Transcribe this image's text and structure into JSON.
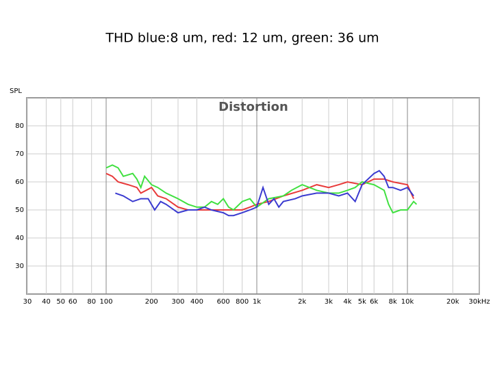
{
  "chart_data": {
    "type": "line",
    "title": "THD       blue:8 um, red: 12 um, green: 36 um",
    "annotation": "Distortion",
    "y_label": "SPL",
    "log_x": true,
    "grid": true,
    "xlim": [
      30,
      30000
    ],
    "ylim": [
      20,
      90
    ],
    "xticks": [
      30,
      40,
      50,
      60,
      80,
      100,
      200,
      300,
      400,
      600,
      800,
      {
        "value": 1000,
        "label": "1k"
      },
      {
        "value": 2000,
        "label": "2k"
      },
      {
        "value": 3000,
        "label": "3k"
      },
      {
        "value": 4000,
        "label": "4k"
      },
      {
        "value": 5000,
        "label": "5k"
      },
      {
        "value": 6000,
        "label": "6k"
      },
      {
        "value": 8000,
        "label": "8k"
      },
      {
        "value": 10000,
        "label": "10k"
      },
      {
        "value": 20000,
        "label": "20k"
      },
      {
        "value": 30000,
        "label": "30kHz"
      }
    ],
    "yticks": [
      30,
      40,
      50,
      60,
      70,
      80
    ],
    "series": [
      {
        "name": "red",
        "color": "#e83a3a",
        "x": [
          100,
          110,
          120,
          140,
          160,
          170,
          200,
          220,
          250,
          300,
          350,
          400,
          500,
          600,
          700,
          800,
          900,
          1000,
          1200,
          1500,
          2000,
          2500,
          3000,
          3500,
          4000,
          5000,
          6000,
          7000,
          8000,
          10000,
          11000
        ],
        "values": [
          63,
          62,
          60,
          59,
          58,
          56,
          58,
          55,
          54,
          51,
          50,
          50,
          50,
          50,
          50,
          50,
          51,
          52,
          53,
          55,
          57,
          59,
          58,
          59,
          60,
          59,
          61,
          61,
          60,
          59,
          54
        ]
      },
      {
        "name": "green",
        "color": "#40e040",
        "x": [
          100,
          110,
          120,
          130,
          150,
          160,
          170,
          180,
          200,
          220,
          250,
          300,
          350,
          400,
          450,
          500,
          550,
          600,
          650,
          700,
          800,
          900,
          1000,
          1200,
          1500,
          1700,
          2000,
          2500,
          3000,
          3500,
          4000,
          4500,
          5000,
          6000,
          7000,
          7500,
          8000,
          9000,
          10000,
          11000,
          11500
        ],
        "values": [
          65,
          66,
          65,
          62,
          63,
          61,
          58,
          62,
          59,
          58,
          56,
          54,
          52,
          51,
          51,
          53,
          52,
          54,
          51,
          50,
          53,
          54,
          51,
          54,
          55,
          57,
          59,
          57,
          56,
          56,
          57,
          58,
          60,
          59,
          57,
          52,
          49,
          50,
          50,
          53,
          52
        ]
      },
      {
        "name": "blue",
        "color": "#3a3ad0",
        "x": [
          115,
          130,
          150,
          170,
          190,
          210,
          230,
          250,
          300,
          350,
          400,
          450,
          500,
          600,
          650,
          700,
          800,
          900,
          1000,
          1100,
          1200,
          1300,
          1400,
          1500,
          1800,
          2000,
          2500,
          3000,
          3500,
          4000,
          4500,
          5000,
          6000,
          6500,
          7000,
          7500,
          8000,
          9000,
          10000,
          11000
        ],
        "values": [
          56,
          55,
          53,
          54,
          54,
          50,
          53,
          52,
          49,
          50,
          50,
          51,
          50,
          49,
          48,
          48,
          49,
          50,
          51,
          58,
          52,
          54,
          51,
          53,
          54,
          55,
          56,
          56,
          55,
          56,
          53,
          59,
          63,
          64,
          62,
          58,
          58,
          57,
          58,
          55
        ]
      }
    ]
  }
}
